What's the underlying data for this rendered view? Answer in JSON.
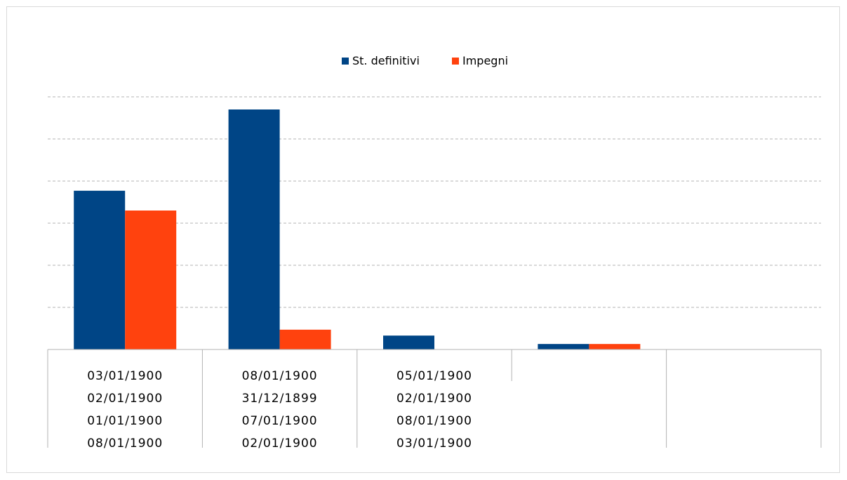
{
  "chart_data": {
    "type": "bar",
    "legend_position": "top",
    "grid": true,
    "series": [
      {
        "name": "St. definitivi",
        "color": "#004586",
        "values": [
          3.77,
          5.7,
          0.33,
          0.13,
          null
        ]
      },
      {
        "name": "Impegni",
        "color": "#ff420e",
        "values": [
          3.3,
          0.47,
          0.0,
          0.13,
          null
        ]
      }
    ],
    "category_labels": [
      [
        "03/01/1900",
        "02/01/1900",
        "01/01/1900",
        "08/01/1900"
      ],
      [
        "08/01/1900",
        "31/12/1899",
        "07/01/1900",
        "02/01/1900"
      ],
      [
        "05/01/1900",
        "02/01/1900",
        "08/01/1900",
        "03/01/1900"
      ],
      [],
      []
    ],
    "ylim": [
      0,
      6
    ],
    "title": "",
    "xlabel": "",
    "ylabel": ""
  }
}
